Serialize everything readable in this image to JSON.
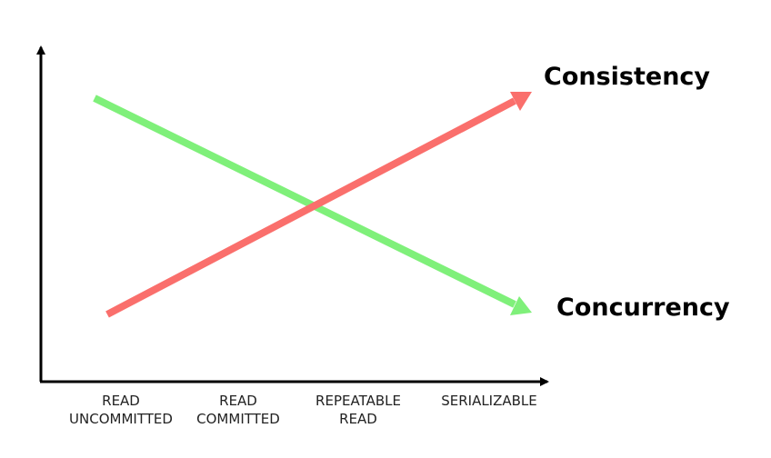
{
  "lines": [
    {
      "label": "Consistency"
    },
    {
      "label": "Concurrency"
    }
  ],
  "x_axis": {
    "categories": [
      [
        "READ",
        "UNCOMMITTED"
      ],
      [
        "READ",
        "COMMITTED"
      ],
      [
        "REPEATABLE",
        "READ"
      ],
      [
        "SERIALIZABLE"
      ]
    ]
  }
}
